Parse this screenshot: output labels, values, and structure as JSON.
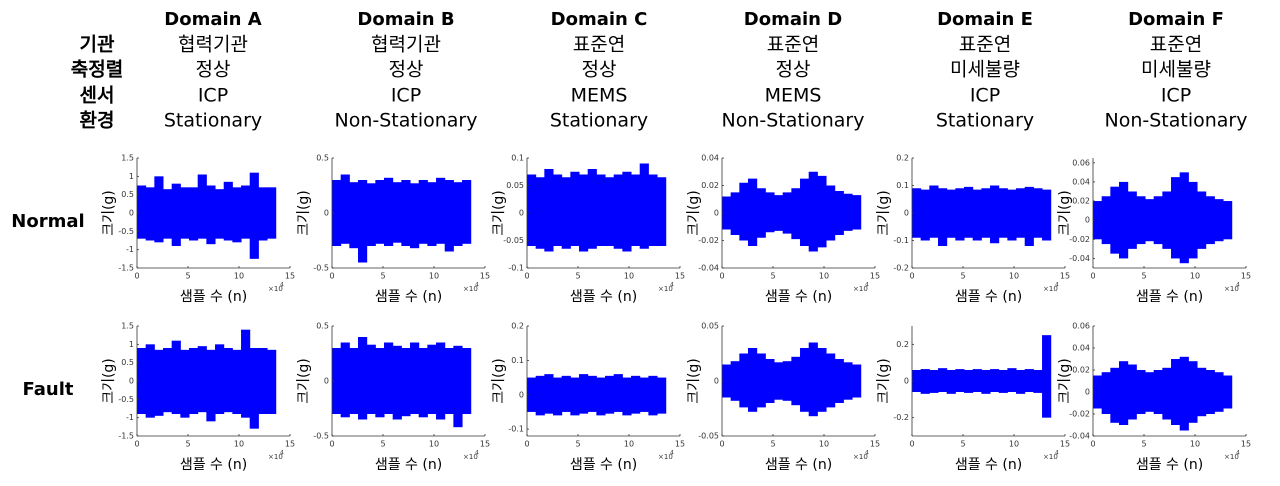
{
  "header": {
    "row_labels": [
      "기관",
      "축정렬",
      "센서",
      "환경"
    ],
    "columns": [
      {
        "domain": "Domain A",
        "lines": [
          "협력기관",
          "정상",
          "ICP",
          "Stationary"
        ]
      },
      {
        "domain": "Domain B",
        "lines": [
          "협력기관",
          "정상",
          "ICP",
          "Non-Stationary"
        ]
      },
      {
        "domain": "Domain C",
        "lines": [
          "표준연",
          "정상",
          "MEMS",
          "Stationary"
        ]
      },
      {
        "domain": "Domain D",
        "lines": [
          "표준연",
          "정상",
          "MEMS",
          "Non-Stationary"
        ]
      },
      {
        "domain": "Domain E",
        "lines": [
          "표준연",
          "미세불량",
          "ICP",
          "Stationary"
        ]
      },
      {
        "domain": "Domain F",
        "lines": [
          "표준연",
          "미세불량",
          "ICP",
          "Non-Stationary"
        ]
      }
    ]
  },
  "condition_labels": [
    "Normal",
    "Fault"
  ],
  "chart_data": [
    {
      "type": "band",
      "ylabel": "크기(g)",
      "xlabel": "샘플 수 (n)",
      "x_multiplier": "×10",
      "x_exponent": "4",
      "xlim": [
        0,
        15
      ],
      "xticks": [
        0,
        5,
        10,
        15
      ],
      "ylim": [
        -1.5,
        1.5
      ],
      "yticks": [
        -1.5,
        -1,
        -0.5,
        0,
        0.5,
        1,
        1.5
      ],
      "x": [
        0,
        0.85,
        1.7,
        2.55,
        3.4,
        4.25,
        5.1,
        5.95,
        6.8,
        7.65,
        8.5,
        9.35,
        10.2,
        11.05,
        11.9,
        12.75
      ],
      "series": [
        {
          "color": "#0000ff",
          "values": [
            0.75,
            0.7,
            1.0,
            0.65,
            0.8,
            0.7,
            0.7,
            1.05,
            0.75,
            0.65,
            0.85,
            0.7,
            0.75,
            1.1,
            0.7,
            0.7
          ]
        },
        {
          "color": "#0000ff",
          "values": [
            -0.7,
            -0.75,
            -0.8,
            -0.7,
            -0.9,
            -0.7,
            -0.75,
            -0.7,
            -0.85,
            -0.7,
            -0.75,
            -0.8,
            -0.7,
            -1.25,
            -0.75,
            -0.7
          ]
        }
      ]
    },
    {
      "type": "band",
      "ylabel": "크기(g)",
      "xlabel": "샘플 수 (n)",
      "x_multiplier": "×10",
      "x_exponent": "4",
      "xlim": [
        0,
        15
      ],
      "xticks": [
        0,
        5,
        10,
        15
      ],
      "ylim": [
        -0.5,
        0.5
      ],
      "yticks": [
        -0.5,
        0,
        0.5
      ],
      "x": [
        0,
        0.85,
        1.7,
        2.55,
        3.4,
        4.25,
        5.1,
        5.95,
        6.8,
        7.65,
        8.5,
        9.35,
        10.2,
        11.05,
        11.9,
        12.75
      ],
      "series": [
        {
          "color": "#0000ff",
          "values": [
            0.3,
            0.35,
            0.28,
            0.3,
            0.27,
            0.3,
            0.32,
            0.28,
            0.3,
            0.27,
            0.3,
            0.28,
            0.32,
            0.3,
            0.28,
            0.3
          ]
        },
        {
          "color": "#0000ff",
          "values": [
            -0.3,
            -0.28,
            -0.32,
            -0.45,
            -0.3,
            -0.28,
            -0.3,
            -0.27,
            -0.3,
            -0.32,
            -0.28,
            -0.3,
            -0.28,
            -0.35,
            -0.3,
            -0.28
          ]
        }
      ]
    },
    {
      "type": "band",
      "ylabel": "크기(g)",
      "xlabel": "샘플 수 (n)",
      "x_multiplier": "×10",
      "x_exponent": "4",
      "xlim": [
        0,
        15
      ],
      "xticks": [
        0,
        5,
        10,
        15
      ],
      "ylim": [
        -0.1,
        0.1
      ],
      "yticks": [
        -0.1,
        -0.05,
        0,
        0.05,
        0.1
      ],
      "x": [
        0,
        0.85,
        1.7,
        2.55,
        3.4,
        4.25,
        5.1,
        5.95,
        6.8,
        7.65,
        8.5,
        9.35,
        10.2,
        11.05,
        11.9,
        12.75
      ],
      "series": [
        {
          "color": "#0000ff",
          "values": [
            0.07,
            0.065,
            0.08,
            0.07,
            0.065,
            0.075,
            0.07,
            0.08,
            0.07,
            0.065,
            0.07,
            0.075,
            0.07,
            0.09,
            0.07,
            0.065
          ]
        },
        {
          "color": "#0000ff",
          "values": [
            -0.06,
            -0.065,
            -0.07,
            -0.06,
            -0.065,
            -0.06,
            -0.07,
            -0.065,
            -0.06,
            -0.06,
            -0.065,
            -0.07,
            -0.06,
            -0.065,
            -0.06,
            -0.06
          ]
        }
      ]
    },
    {
      "type": "band",
      "ylabel": "크기(g)",
      "xlabel": "샘플 수 (n)",
      "x_multiplier": "×10",
      "x_exponent": "4",
      "xlim": [
        0,
        15
      ],
      "xticks": [
        0,
        5,
        10,
        15
      ],
      "ylim": [
        -0.04,
        0.04
      ],
      "yticks": [
        -0.04,
        -0.02,
        0,
        0.02,
        0.04
      ],
      "x": [
        0,
        0.85,
        1.7,
        2.55,
        3.4,
        4.25,
        5.1,
        5.95,
        6.8,
        7.65,
        8.5,
        9.35,
        10.2,
        11.05,
        11.9,
        12.75
      ],
      "series": [
        {
          "color": "#0000ff",
          "values": [
            0.012,
            0.015,
            0.022,
            0.025,
            0.018,
            0.015,
            0.013,
            0.015,
            0.018,
            0.025,
            0.03,
            0.027,
            0.02,
            0.016,
            0.014,
            0.013
          ]
        },
        {
          "color": "#0000ff",
          "values": [
            -0.012,
            -0.016,
            -0.02,
            -0.024,
            -0.018,
            -0.014,
            -0.013,
            -0.015,
            -0.019,
            -0.024,
            -0.028,
            -0.025,
            -0.02,
            -0.016,
            -0.013,
            -0.012
          ]
        }
      ]
    },
    {
      "type": "band",
      "ylabel": "크기(g)",
      "xlabel": "샘플 수 (n)",
      "x_multiplier": "×10",
      "x_exponent": "4",
      "xlim": [
        0,
        15
      ],
      "xticks": [
        0,
        5,
        10,
        15
      ],
      "ylim": [
        -0.2,
        0.2
      ],
      "yticks": [
        -0.2,
        -0.1,
        0,
        0.1,
        0.2
      ],
      "x": [
        0,
        0.85,
        1.7,
        2.55,
        3.4,
        4.25,
        5.1,
        5.95,
        6.8,
        7.65,
        8.5,
        9.35,
        10.2,
        11.05,
        11.9,
        12.75
      ],
      "series": [
        {
          "color": "#0000ff",
          "values": [
            0.09,
            0.085,
            0.1,
            0.09,
            0.085,
            0.09,
            0.095,
            0.085,
            0.09,
            0.1,
            0.09,
            0.085,
            0.09,
            0.095,
            0.09,
            0.085
          ]
        },
        {
          "color": "#0000ff",
          "values": [
            -0.09,
            -0.1,
            -0.09,
            -0.12,
            -0.09,
            -0.1,
            -0.09,
            -0.1,
            -0.09,
            -0.11,
            -0.09,
            -0.1,
            -0.09,
            -0.12,
            -0.09,
            -0.1
          ]
        }
      ]
    },
    {
      "type": "band",
      "ylabel": "크기(g)",
      "xlabel": "샘플 수 (n)",
      "x_multiplier": "×10",
      "x_exponent": "4",
      "xlim": [
        0,
        15
      ],
      "xticks": [
        0,
        5,
        10,
        15
      ],
      "ylim": [
        -0.05,
        0.065
      ],
      "yticks": [
        -0.04,
        -0.02,
        0,
        0.02,
        0.04,
        0.06
      ],
      "x": [
        0,
        0.85,
        1.7,
        2.55,
        3.4,
        4.25,
        5.1,
        5.95,
        6.8,
        7.65,
        8.5,
        9.35,
        10.2,
        11.05,
        11.9,
        12.75
      ],
      "series": [
        {
          "color": "#0000ff",
          "values": [
            0.02,
            0.025,
            0.035,
            0.04,
            0.03,
            0.025,
            0.022,
            0.025,
            0.03,
            0.045,
            0.05,
            0.04,
            0.03,
            0.025,
            0.022,
            0.02
          ]
        },
        {
          "color": "#0000ff",
          "values": [
            -0.02,
            -0.025,
            -0.035,
            -0.04,
            -0.03,
            -0.025,
            -0.022,
            -0.025,
            -0.03,
            -0.04,
            -0.045,
            -0.04,
            -0.03,
            -0.025,
            -0.022,
            -0.02
          ]
        }
      ]
    },
    {
      "type": "band",
      "ylabel": "크기(g)",
      "xlabel": "샘플 수 (n)",
      "x_multiplier": "×10",
      "x_exponent": "4",
      "xlim": [
        0,
        15
      ],
      "xticks": [
        0,
        5,
        10,
        15
      ],
      "ylim": [
        -1.5,
        1.5
      ],
      "yticks": [
        -1.5,
        -1,
        -0.5,
        0,
        0.5,
        1,
        1.5
      ],
      "x": [
        0,
        0.85,
        1.7,
        2.55,
        3.4,
        4.25,
        5.1,
        5.95,
        6.8,
        7.65,
        8.5,
        9.35,
        10.2,
        11.05,
        11.9,
        12.75
      ],
      "series": [
        {
          "color": "#0000ff",
          "values": [
            0.9,
            1.0,
            0.85,
            0.9,
            1.1,
            0.85,
            0.9,
            0.95,
            0.85,
            1.0,
            0.9,
            0.85,
            1.4,
            0.9,
            0.9,
            0.85
          ]
        },
        {
          "color": "#0000ff",
          "values": [
            -0.9,
            -1.0,
            -0.95,
            -0.85,
            -0.9,
            -1.0,
            -0.9,
            -0.85,
            -1.1,
            -0.9,
            -0.85,
            -0.9,
            -1.0,
            -1.3,
            -0.9,
            -0.9
          ]
        }
      ]
    },
    {
      "type": "band",
      "ylabel": "크기(g)",
      "xlabel": "샘플 수 (n)",
      "x_multiplier": "×10",
      "x_exponent": "4",
      "xlim": [
        0,
        15
      ],
      "xticks": [
        0,
        5,
        10,
        15
      ],
      "ylim": [
        -0.5,
        0.5
      ],
      "yticks": [
        -0.5,
        0,
        0.5
      ],
      "x": [
        0,
        0.85,
        1.7,
        2.55,
        3.4,
        4.25,
        5.1,
        5.95,
        6.8,
        7.65,
        8.5,
        9.35,
        10.2,
        11.05,
        11.9,
        12.75
      ],
      "series": [
        {
          "color": "#0000ff",
          "values": [
            0.3,
            0.35,
            0.3,
            0.4,
            0.33,
            0.3,
            0.35,
            0.32,
            0.3,
            0.35,
            0.3,
            0.33,
            0.35,
            0.3,
            0.32,
            0.3
          ]
        },
        {
          "color": "#0000ff",
          "values": [
            -0.3,
            -0.33,
            -0.3,
            -0.35,
            -0.3,
            -0.33,
            -0.3,
            -0.35,
            -0.32,
            -0.3,
            -0.33,
            -0.3,
            -0.35,
            -0.3,
            -0.42,
            -0.3
          ]
        }
      ]
    },
    {
      "type": "band",
      "ylabel": "크기(g)",
      "xlabel": "샘플 수 (n)",
      "x_multiplier": "×10",
      "x_exponent": "4",
      "xlim": [
        0,
        15
      ],
      "xticks": [
        0,
        5,
        10,
        15
      ],
      "ylim": [
        -0.12,
        0.2
      ],
      "yticks": [
        -0.1,
        0,
        0.1,
        0.2
      ],
      "x": [
        0,
        0.85,
        1.7,
        2.55,
        3.4,
        4.25,
        5.1,
        5.95,
        6.8,
        7.65,
        8.5,
        9.35,
        10.2,
        11.05,
        11.9,
        12.75
      ],
      "series": [
        {
          "color": "#0000ff",
          "values": [
            0.05,
            0.055,
            0.06,
            0.05,
            0.055,
            0.05,
            0.06,
            0.055,
            0.05,
            0.055,
            0.06,
            0.05,
            0.055,
            0.05,
            0.055,
            0.05
          ]
        },
        {
          "color": "#0000ff",
          "values": [
            -0.05,
            -0.06,
            -0.055,
            -0.06,
            -0.05,
            -0.06,
            -0.055,
            -0.05,
            -0.06,
            -0.055,
            -0.05,
            -0.06,
            -0.055,
            -0.05,
            -0.06,
            -0.055
          ]
        }
      ]
    },
    {
      "type": "band",
      "ylabel": "크기(g)",
      "xlabel": "샘플 수 (n)",
      "x_multiplier": "×10",
      "x_exponent": "4",
      "xlim": [
        0,
        15
      ],
      "xticks": [
        0,
        5,
        10,
        15
      ],
      "ylim": [
        -0.05,
        0.05
      ],
      "yticks": [
        -0.05,
        0,
        0.05
      ],
      "x": [
        0,
        0.85,
        1.7,
        2.55,
        3.4,
        4.25,
        5.1,
        5.95,
        6.8,
        7.65,
        8.5,
        9.35,
        10.2,
        11.05,
        11.9,
        12.75
      ],
      "series": [
        {
          "color": "#0000ff",
          "values": [
            0.015,
            0.018,
            0.025,
            0.03,
            0.025,
            0.02,
            0.017,
            0.018,
            0.022,
            0.03,
            0.035,
            0.03,
            0.025,
            0.02,
            0.017,
            0.015
          ]
        },
        {
          "color": "#0000ff",
          "values": [
            -0.015,
            -0.018,
            -0.024,
            -0.028,
            -0.024,
            -0.02,
            -0.017,
            -0.018,
            -0.022,
            -0.028,
            -0.032,
            -0.028,
            -0.024,
            -0.02,
            -0.017,
            -0.015
          ]
        }
      ]
    },
    {
      "type": "band",
      "ylabel": "크기(g)",
      "xlabel": "샘플 수 (n)",
      "x_multiplier": "×10",
      "x_exponent": "4",
      "xlim": [
        0,
        15
      ],
      "xticks": [
        0,
        5,
        10,
        15
      ],
      "ylim": [
        -0.3,
        0.3
      ],
      "yticks": [
        -0.2,
        0,
        0.2
      ],
      "x": [
        0,
        0.85,
        1.7,
        2.55,
        3.4,
        4.25,
        5.1,
        5.95,
        6.8,
        7.65,
        8.5,
        9.35,
        10.2,
        11.05,
        11.9,
        12.75
      ],
      "series": [
        {
          "color": "#0000ff",
          "values": [
            0.06,
            0.065,
            0.06,
            0.07,
            0.06,
            0.065,
            0.06,
            0.065,
            0.06,
            0.065,
            0.06,
            0.07,
            0.06,
            0.065,
            0.06,
            0.25
          ]
        },
        {
          "color": "#0000ff",
          "values": [
            -0.06,
            -0.07,
            -0.065,
            -0.06,
            -0.07,
            -0.06,
            -0.065,
            -0.06,
            -0.07,
            -0.06,
            -0.065,
            -0.06,
            -0.07,
            -0.06,
            -0.065,
            -0.2
          ]
        }
      ]
    },
    {
      "type": "band",
      "ylabel": "크기(g)",
      "xlabel": "샘플 수 (n)",
      "x_multiplier": "×10",
      "x_exponent": "4",
      "xlim": [
        0,
        15
      ],
      "xticks": [
        0,
        5,
        10,
        15
      ],
      "ylim": [
        -0.04,
        0.06
      ],
      "yticks": [
        -0.04,
        -0.02,
        0,
        0.02,
        0.04,
        0.06
      ],
      "x": [
        0,
        0.85,
        1.7,
        2.55,
        3.4,
        4.25,
        5.1,
        5.95,
        6.8,
        7.65,
        8.5,
        9.35,
        10.2,
        11.05,
        11.9,
        12.75
      ],
      "series": [
        {
          "color": "#0000ff",
          "values": [
            0.015,
            0.018,
            0.022,
            0.028,
            0.025,
            0.02,
            0.018,
            0.02,
            0.022,
            0.03,
            0.032,
            0.028,
            0.022,
            0.02,
            0.018,
            0.015
          ]
        },
        {
          "color": "#0000ff",
          "values": [
            -0.015,
            -0.02,
            -0.028,
            -0.03,
            -0.025,
            -0.02,
            -0.018,
            -0.02,
            -0.025,
            -0.03,
            -0.035,
            -0.028,
            -0.022,
            -0.02,
            -0.018,
            -0.015
          ]
        }
      ]
    }
  ]
}
